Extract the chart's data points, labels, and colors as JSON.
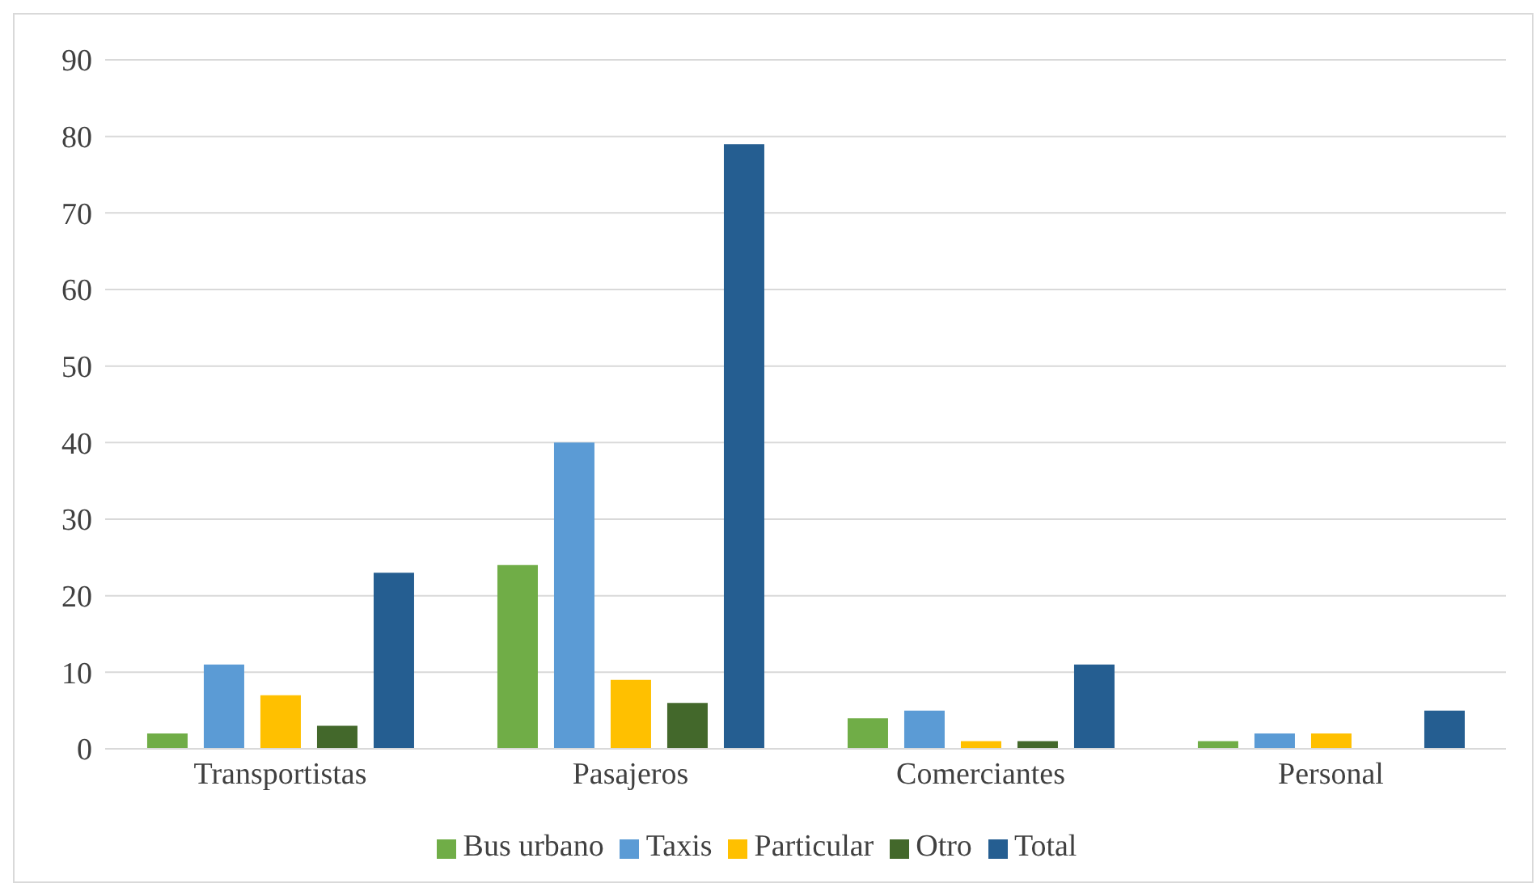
{
  "chart_data": {
    "type": "bar",
    "categories": [
      "Transportistas",
      "Pasajeros",
      "Comerciantes",
      "Personal"
    ],
    "series": [
      {
        "name": "Bus urbano",
        "color": "#70ad47",
        "values": [
          2,
          24,
          4,
          1
        ]
      },
      {
        "name": "Taxis",
        "color": "#5b9bd5",
        "values": [
          11,
          40,
          5,
          2
        ]
      },
      {
        "name": "Particular",
        "color": "#ffc000",
        "values": [
          7,
          9,
          1,
          2
        ]
      },
      {
        "name": "Otro",
        "color": "#43682b",
        "values": [
          3,
          6,
          1,
          0
        ]
      },
      {
        "name": "Total",
        "color": "#255e91",
        "values": [
          23,
          79,
          11,
          5
        ]
      }
    ],
    "ylim": [
      0,
      90
    ],
    "yticks": [
      0,
      10,
      20,
      30,
      40,
      50,
      60,
      70,
      80,
      90
    ],
    "grid": "y",
    "legend": "bottom"
  }
}
